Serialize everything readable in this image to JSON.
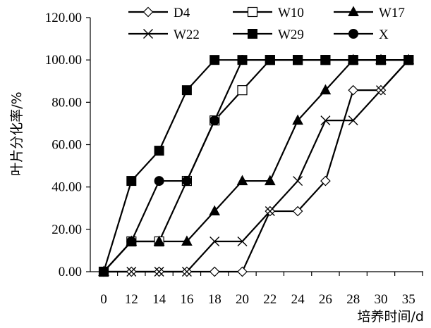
{
  "chart_data": {
    "type": "line",
    "title": "",
    "xlabel": "培养时间/d",
    "ylabel": "叶片分化率/%",
    "x": [
      "0",
      "12",
      "14",
      "16",
      "18",
      "20",
      "22",
      "24",
      "26",
      "28",
      "30",
      "35"
    ],
    "ylim": [
      0,
      120
    ],
    "yticks": [
      "0.00",
      "20.00",
      "40.00",
      "60.00",
      "80.00",
      "100.00",
      "120.00"
    ],
    "grid": false,
    "legend_position": "top",
    "series": [
      {
        "name": "D4",
        "marker": "diamond-open",
        "values": [
          0,
          0,
          0,
          0,
          0,
          0,
          28.57,
          28.57,
          42.86,
          85.71,
          85.71,
          100
        ]
      },
      {
        "name": "W10",
        "marker": "square-open",
        "values": [
          0,
          14.29,
          14.29,
          42.86,
          71.43,
          85.71,
          100,
          100,
          100,
          100,
          100,
          100
        ]
      },
      {
        "name": "W17",
        "marker": "triangle",
        "values": [
          0,
          14.29,
          14.29,
          14.29,
          28.57,
          42.86,
          42.86,
          71.43,
          85.71,
          100,
          100,
          100
        ]
      },
      {
        "name": "W22",
        "marker": "x",
        "values": [
          0,
          0,
          0,
          0,
          14.29,
          14.29,
          28.57,
          42.86,
          71.43,
          71.43,
          85.71,
          100
        ]
      },
      {
        "name": "W29",
        "marker": "square",
        "values": [
          0,
          42.86,
          57.14,
          85.71,
          100,
          100,
          100,
          100,
          100,
          100,
          100,
          100
        ]
      },
      {
        "name": "X",
        "marker": "circle",
        "values": [
          0,
          14.29,
          42.86,
          42.86,
          71.43,
          100,
          100,
          100,
          100,
          100,
          100,
          100
        ]
      }
    ]
  }
}
